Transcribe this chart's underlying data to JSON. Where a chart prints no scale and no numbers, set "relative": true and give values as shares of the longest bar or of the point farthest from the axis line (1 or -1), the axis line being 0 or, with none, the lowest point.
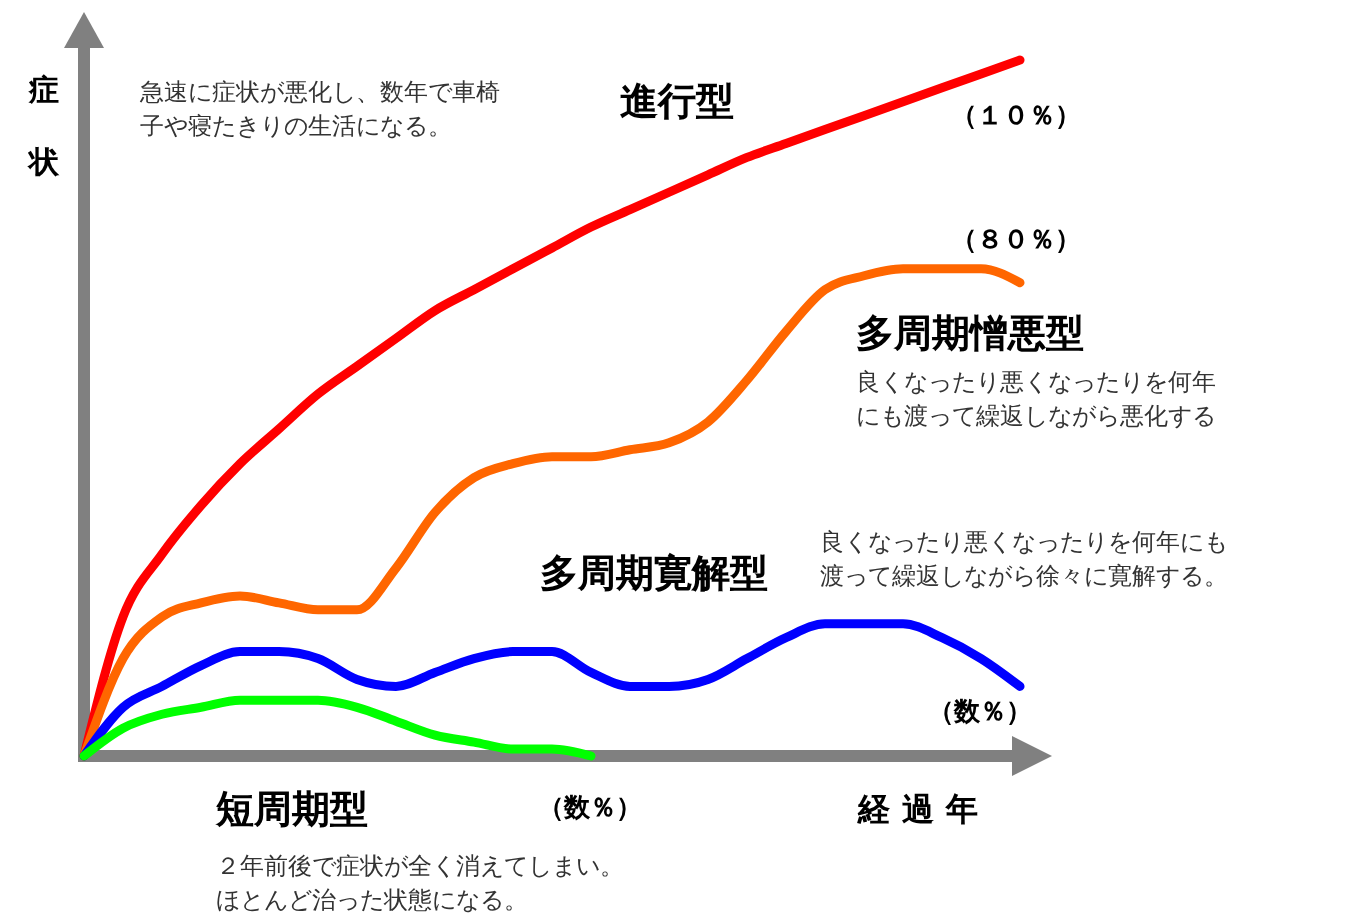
{
  "chart_data": {
    "type": "line",
    "relative": true,
    "xlabel": "経過年",
    "ylabel": "症状",
    "categories": [
      null,
      null,
      null,
      null,
      null,
      null,
      null,
      null,
      null,
      null,
      null,
      null,
      null,
      null,
      null,
      null,
      null,
      null,
      null,
      null,
      null,
      null,
      null,
      null,
      null
    ],
    "series": [
      {
        "name": "進行型",
        "color": "#ff0000",
        "values": [
          0,
          0.2,
          0.29,
          0.36,
          0.42,
          0.47,
          0.52,
          0.56,
          0.6,
          0.64,
          0.67,
          0.7,
          0.73,
          0.76,
          0.785,
          0.81,
          0.835,
          0.86,
          0.88,
          0.9,
          0.92,
          0.94,
          0.96,
          0.98,
          1
        ]
      },
      {
        "name": "多周期憎悪型",
        "color": "#ff6600",
        "values": [
          0,
          0.14,
          0.2,
          0.22,
          0.23,
          0.22,
          0.21,
          0.21,
          0.27,
          0.35,
          0.4,
          0.42,
          0.43,
          0.43,
          0.44,
          0.45,
          0.48,
          0.54,
          0.61,
          0.67,
          0.69,
          0.7,
          0.7,
          0.7,
          0.68
        ]
      },
      {
        "name": "多周期寛解型",
        "color": "#0000ff",
        "values": [
          0,
          0.07,
          0.1,
          0.13,
          0.15,
          0.15,
          0.14,
          0.11,
          0.1,
          0.12,
          0.14,
          0.15,
          0.15,
          0.12,
          0.1,
          0.1,
          0.11,
          0.14,
          0.17,
          0.19,
          0.19,
          0.19,
          0.17,
          0.14,
          0.1
        ]
      },
      {
        "name": "短周期型",
        "color": "#00ff00",
        "values": [
          0,
          0.04,
          0.06,
          0.07,
          0.08,
          0.08,
          0.08,
          0.07,
          0.05,
          0.03,
          0.02,
          0.01,
          0.01,
          0,
          null,
          null,
          null,
          null,
          null,
          null,
          null,
          null,
          null,
          null,
          null
        ]
      }
    ],
    "annotations": [
      "急速に症状が悪化し、数年で車椅子や寝たきりの生活になる。",
      "（１０％）",
      "（８０％）",
      "良くなったり悪くなったりを何年にも渡って繰返しながら悪化する",
      "良くなったり悪くなったりを何年にも渡って繰返しながら徐々に寛解する。",
      "（数％）",
      "（数％）",
      "２年前後で症状が全く消えてしまい。ほとんど治った状態になる。"
    ]
  }
}
